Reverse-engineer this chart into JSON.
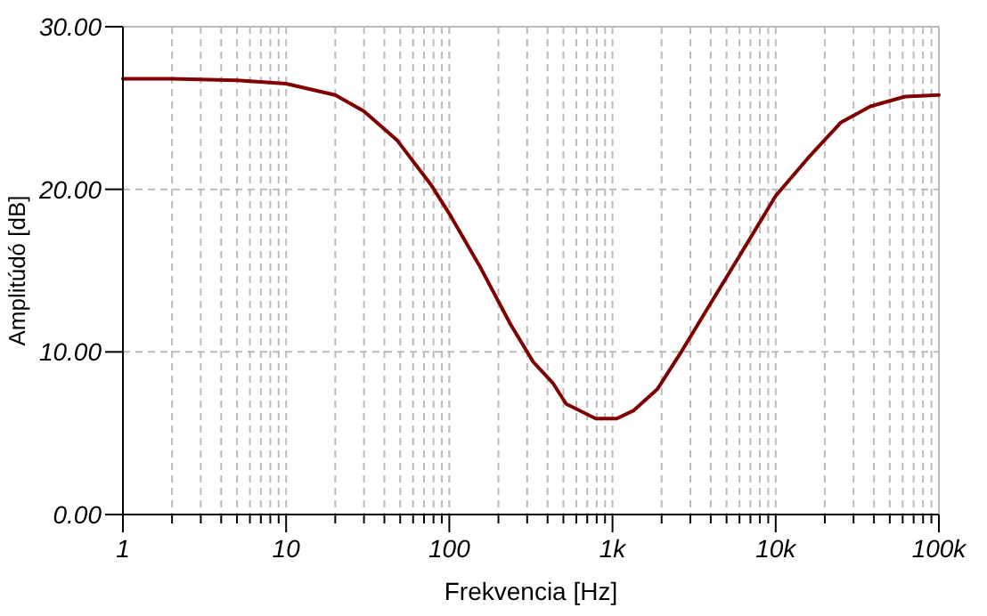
{
  "chart_data": {
    "type": "line",
    "xlabel": "Frekvencia [Hz]",
    "ylabel": "Amplitúdó [dB]",
    "log": "x",
    "grid": true,
    "marker": "none",
    "line_style": "solid",
    "xlim": [
      1,
      100000
    ],
    "ylim": [
      0,
      30
    ],
    "xticks": [
      1,
      {
        "value": 2,
        "label": null
      },
      {
        "value": 3,
        "label": null
      },
      {
        "value": 4,
        "label": null
      },
      {
        "value": 5,
        "label": null
      },
      {
        "value": 6,
        "label": null
      },
      {
        "value": 7,
        "label": null
      },
      {
        "value": 8,
        "label": null
      },
      {
        "value": 9,
        "label": null
      },
      10,
      {
        "value": 20,
        "label": null
      },
      {
        "value": 30,
        "label": null
      },
      {
        "value": 40,
        "label": null
      },
      {
        "value": 50,
        "label": null
      },
      {
        "value": 60,
        "label": null
      },
      {
        "value": 70,
        "label": null
      },
      {
        "value": 80,
        "label": null
      },
      {
        "value": 90,
        "label": null
      },
      100,
      {
        "value": 200,
        "label": null
      },
      {
        "value": 300,
        "label": null
      },
      {
        "value": 400,
        "label": null
      },
      {
        "value": 500,
        "label": null
      },
      {
        "value": 600,
        "label": null
      },
      {
        "value": 700,
        "label": null
      },
      {
        "value": 800,
        "label": null
      },
      {
        "value": 900,
        "label": null
      },
      {
        "value": 1000,
        "label": "1k"
      },
      {
        "value": 2000,
        "label": null
      },
      {
        "value": 3000,
        "label": null
      },
      {
        "value": 4000,
        "label": null
      },
      {
        "value": 5000,
        "label": null
      },
      {
        "value": 6000,
        "label": null
      },
      {
        "value": 7000,
        "label": null
      },
      {
        "value": 8000,
        "label": null
      },
      {
        "value": 9000,
        "label": null
      },
      {
        "value": 10000,
        "label": "10k"
      },
      {
        "value": 20000,
        "label": null
      },
      {
        "value": 30000,
        "label": null
      },
      {
        "value": 40000,
        "label": null
      },
      {
        "value": 50000,
        "label": null
      },
      {
        "value": 60000,
        "label": null
      },
      {
        "value": 70000,
        "label": null
      },
      {
        "value": 80000,
        "label": null
      },
      {
        "value": 90000,
        "label": null
      },
      {
        "value": 100000,
        "label": "100k"
      }
    ],
    "yticks": [
      {
        "value": 0,
        "label": "0.00"
      },
      {
        "value": 10,
        "label": "10.00"
      },
      {
        "value": 20,
        "label": "20.00"
      },
      {
        "value": 30,
        "label": "30.00"
      }
    ],
    "series": [
      {
        "color": "#800000",
        "x": [
          1,
          2,
          5,
          10,
          20,
          30,
          48,
          77,
          100,
          155,
          237,
          326,
          430,
          520,
          790,
          1060,
          1350,
          1880,
          2600,
          4000,
          6000,
          10000,
          15700,
          25000,
          38000,
          62000,
          100000
        ],
        "values": [
          26.8,
          26.8,
          26.7,
          26.5,
          25.8,
          24.8,
          23.0,
          20.3,
          18.5,
          15.2,
          11.7,
          9.4,
          8.1,
          6.8,
          5.9,
          5.9,
          6.4,
          7.7,
          9.9,
          13.0,
          15.9,
          19.6,
          21.9,
          24.1,
          25.1,
          25.7,
          25.8
        ]
      }
    ]
  }
}
